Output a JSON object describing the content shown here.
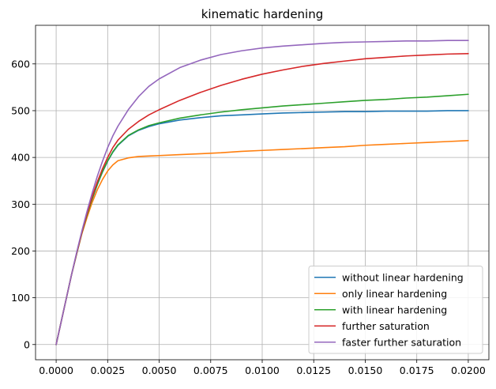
{
  "chart_data": {
    "type": "line",
    "title": "kinematic hardening",
    "xlabel": "",
    "ylabel": "",
    "xlim": [
      -0.001,
      0.021
    ],
    "ylim": [
      -32.5,
      682.5
    ],
    "x_ticks": [
      0.0,
      0.0025,
      0.005,
      0.0075,
      0.01,
      0.0125,
      0.015,
      0.0175,
      0.02
    ],
    "x_tick_labels": [
      "0.0000",
      "0.0025",
      "0.0050",
      "0.0075",
      "0.0100",
      "0.0125",
      "0.0150",
      "0.0175",
      "0.0200"
    ],
    "y_ticks": [
      0,
      100,
      200,
      300,
      400,
      500,
      600
    ],
    "y_tick_labels": [
      "0",
      "100",
      "200",
      "300",
      "400",
      "500",
      "600"
    ],
    "grid": true,
    "legend_position": "lower-right",
    "x": [
      0.0,
      0.00025,
      0.0005,
      0.00075,
      0.001,
      0.00125,
      0.0015,
      0.00175,
      0.002,
      0.00225,
      0.0025,
      0.00275,
      0.003,
      0.0035,
      0.004,
      0.0045,
      0.005,
      0.006,
      0.007,
      0.008,
      0.009,
      0.01,
      0.011,
      0.012,
      0.013,
      0.014,
      0.015,
      0.016,
      0.017,
      0.018,
      0.019,
      0.02
    ],
    "series": [
      {
        "name": "without linear hardening",
        "color": "#1f77b4",
        "values": [
          0,
          50,
          100,
          150,
          195,
          239,
          276,
          311,
          342,
          369,
          392,
          411,
          426,
          446,
          458,
          466,
          472,
          480,
          485,
          489,
          491,
          493,
          495,
          496,
          497,
          498,
          498,
          499,
          499,
          499,
          500,
          500
        ]
      },
      {
        "name": "only linear hardening",
        "color": "#ff7f0e",
        "values": [
          0,
          50,
          100,
          150,
          195,
          237,
          272,
          304,
          331,
          353,
          371,
          384,
          393,
          399,
          402,
          403,
          404,
          406,
          408,
          410,
          413,
          415,
          417,
          419,
          421,
          423,
          426,
          428,
          430,
          432,
          434,
          436
        ]
      },
      {
        "name": "with linear hardening",
        "color": "#2ca02c",
        "values": [
          0,
          50,
          100,
          150,
          195,
          239,
          277,
          312,
          343,
          370,
          393,
          412,
          427,
          447,
          459,
          468,
          474,
          484,
          491,
          497,
          502,
          506,
          510,
          513,
          516,
          519,
          522,
          524,
          527,
          529,
          532,
          535
        ]
      },
      {
        "name": "further saturation",
        "color": "#d62728",
        "values": [
          0,
          50,
          100,
          150,
          196,
          240,
          280,
          316,
          348,
          376,
          400,
          421,
          437,
          460,
          477,
          491,
          502,
          522,
          539,
          554,
          567,
          578,
          587,
          595,
          601,
          606,
          611,
          614,
          617,
          619,
          621,
          622
        ]
      },
      {
        "name": "faster further saturation",
        "color": "#9467bd",
        "values": [
          0,
          50,
          100,
          150,
          198,
          243,
          285,
          324,
          360,
          392,
          421,
          446,
          467,
          502,
          530,
          552,
          568,
          592,
          608,
          620,
          628,
          634,
          638,
          641,
          644,
          646,
          647,
          648,
          649,
          649,
          650,
          650
        ]
      }
    ]
  }
}
